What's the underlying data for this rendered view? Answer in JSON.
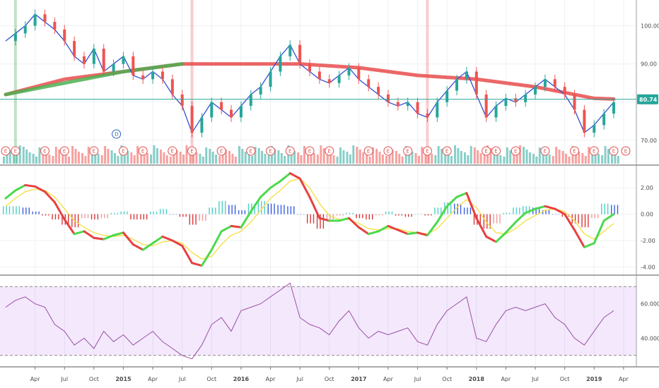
{
  "chart_data": [
    {
      "type": "line",
      "panel": "price",
      "y_ticks": [
        {
          "label": "100.00",
          "value": 100
        },
        {
          "label": "90.00",
          "value": 90
        },
        {
          "label": "80.00",
          "value": 80
        },
        {
          "label": "70.00",
          "value": 70
        }
      ],
      "ylim": [
        65,
        106
      ],
      "last_price": {
        "label": "80.74",
        "value": 80.74
      },
      "x_ticks": [
        "Apr",
        "Jul",
        "Oct",
        "2015",
        "Apr",
        "Jul",
        "Oct",
        "2016",
        "Apr",
        "Jul",
        "Oct",
        "2017",
        "Apr",
        "Jul",
        "Oct",
        "2018",
        "Apr",
        "Jul",
        "Oct",
        "2019",
        "Apr"
      ],
      "x_tick_months": [
        3,
        6,
        9,
        12,
        15,
        18,
        21,
        24,
        27,
        30,
        33,
        36,
        39,
        42,
        45,
        48,
        51,
        54,
        57,
        60,
        63
      ],
      "price_series": {
        "name": "",
        "months": [
          0,
          1,
          2,
          3,
          4,
          5,
          6,
          7,
          8,
          9,
          10,
          11,
          12,
          13,
          14,
          15,
          16,
          17,
          18,
          19,
          20,
          21,
          22,
          23,
          24,
          25,
          26,
          27,
          28,
          29,
          30,
          31,
          32,
          33,
          34,
          35,
          36,
          37,
          38,
          39,
          40,
          41,
          42,
          43,
          44,
          45,
          46,
          47,
          48,
          49,
          50,
          51,
          52,
          53,
          54,
          55,
          56,
          57,
          58,
          59,
          60,
          61,
          62
        ],
        "values": [
          96,
          98,
          100,
          103,
          101,
          99,
          96,
          92,
          90,
          94,
          88,
          90,
          92,
          87,
          86,
          88,
          86,
          82,
          79,
          72,
          76,
          80,
          78,
          76,
          79,
          82,
          84,
          88,
          92,
          95,
          90,
          88,
          86,
          85,
          87,
          89,
          86,
          84,
          82,
          80,
          79,
          80,
          77,
          76,
          80,
          83,
          86,
          88,
          82,
          76,
          79,
          81,
          80,
          82,
          84,
          86,
          84,
          82,
          78,
          72,
          74,
          77,
          80
        ]
      },
      "ma_series": [
        {
          "name": "",
          "color": "#e84c4c",
          "months": [
            0,
            6,
            12,
            18,
            24,
            30,
            36,
            42,
            48,
            54,
            60,
            62
          ],
          "values": [
            82,
            86,
            88,
            90,
            90,
            90,
            89,
            87,
            86,
            84,
            81,
            80.8
          ]
        },
        {
          "name": "",
          "color": "#4caf50",
          "months": [
            0,
            6,
            12,
            18
          ],
          "values": [
            82,
            85,
            88,
            90
          ]
        }
      ],
      "highlight_months": [
        1,
        19,
        43
      ],
      "earnings_months": [
        0,
        1,
        4,
        6,
        9,
        12,
        14,
        17,
        19,
        22,
        25,
        27,
        29,
        31,
        33,
        37,
        39,
        41,
        43,
        45,
        49,
        50,
        52,
        55,
        58,
        60,
        62
      ],
      "dividend_month": 11
    },
    {
      "type": "bar",
      "panel": "macd",
      "y_ticks": [
        {
          "label": "2.00",
          "value": 2
        },
        {
          "label": "0.00",
          "value": 0
        },
        {
          "label": "-2.00",
          "value": -2
        },
        {
          "label": "-4.00",
          "value": -4
        }
      ],
      "ylim": [
        -4.3,
        3.4
      ],
      "months": [
        0,
        1,
        2,
        3,
        4,
        5,
        6,
        7,
        8,
        9,
        10,
        11,
        12,
        13,
        14,
        15,
        16,
        17,
        18,
        19,
        20,
        21,
        22,
        23,
        24,
        25,
        26,
        27,
        28,
        29,
        30,
        31,
        32,
        33,
        34,
        35,
        36,
        37,
        38,
        39,
        40,
        41,
        42,
        43,
        44,
        45,
        46,
        47,
        48,
        49,
        50,
        51,
        52,
        53,
        54,
        55,
        56,
        57,
        58,
        59,
        60,
        61,
        62
      ],
      "macd": [
        1.2,
        1.8,
        2.2,
        2.1,
        1.7,
        0.9,
        -0.4,
        -1.5,
        -1.3,
        -1.8,
        -1.9,
        -1.6,
        -1.4,
        -2.3,
        -2.7,
        -2.2,
        -1.7,
        -2.0,
        -2.4,
        -3.7,
        -3.9,
        -2.7,
        -1.3,
        -0.9,
        -1.0,
        0.2,
        1.3,
        2.0,
        2.5,
        3.1,
        2.7,
        1.3,
        -0.3,
        -0.5,
        -0.5,
        -0.3,
        -1.0,
        -1.5,
        -1.3,
        -0.9,
        -1.2,
        -1.5,
        -1.4,
        -1.6,
        -0.6,
        0.6,
        1.3,
        1.6,
        -0.3,
        -1.7,
        -2.1,
        -1.4,
        -0.6,
        0.1,
        0.4,
        0.6,
        0.4,
        0.0,
        -1.2,
        -2.5,
        -2.2,
        -0.5,
        0.0
      ],
      "signal": [
        0.6,
        1.2,
        1.7,
        1.9,
        1.8,
        1.3,
        0.4,
        -0.5,
        -1.0,
        -1.4,
        -1.6,
        -1.7,
        -1.6,
        -1.9,
        -2.3,
        -2.4,
        -2.1,
        -2.0,
        -2.2,
        -2.9,
        -3.4,
        -3.2,
        -2.3,
        -1.6,
        -1.3,
        -0.6,
        0.3,
        1.2,
        1.8,
        2.5,
        2.7,
        2.0,
        0.8,
        -0.1,
        -0.4,
        -0.4,
        -0.7,
        -1.1,
        -1.2,
        -1.1,
        -1.1,
        -1.3,
        -1.4,
        -1.5,
        -1.1,
        -0.3,
        0.5,
        1.1,
        0.5,
        -0.6,
        -1.4,
        -1.5,
        -1.1,
        -0.5,
        -0.1,
        0.3,
        0.4,
        0.2,
        -0.5,
        -1.5,
        -1.9,
        -1.3,
        -0.7
      ],
      "histogram": [
        0.6,
        0.6,
        0.5,
        0.2,
        -0.1,
        -0.4,
        -0.8,
        -1.0,
        -0.3,
        -0.4,
        -0.3,
        0.1,
        0.2,
        -0.4,
        -0.4,
        0.2,
        0.4,
        0.0,
        -0.2,
        -0.8,
        -0.5,
        0.5,
        1.0,
        0.7,
        0.3,
        0.8,
        1.0,
        0.8,
        0.7,
        0.6,
        0.0,
        -0.7,
        -1.1,
        -0.4,
        -0.1,
        0.1,
        -0.3,
        -0.4,
        -0.1,
        0.2,
        -0.1,
        -0.2,
        0.0,
        -0.1,
        0.5,
        0.9,
        0.8,
        0.5,
        -0.8,
        -1.1,
        -0.7,
        0.1,
        0.5,
        0.6,
        0.5,
        0.3,
        0.0,
        -0.2,
        -0.7,
        -1.0,
        -0.3,
        0.8,
        0.7
      ]
    },
    {
      "type": "line",
      "panel": "rsi",
      "y_ticks": [
        {
          "label": "60.0000",
          "value": 60
        },
        {
          "label": "40.0000",
          "value": 40
        }
      ],
      "ylim": [
        25,
        75
      ],
      "band": [
        30,
        70
      ],
      "months": [
        0,
        1,
        2,
        3,
        4,
        5,
        6,
        7,
        8,
        9,
        10,
        11,
        12,
        13,
        14,
        15,
        16,
        17,
        18,
        19,
        20,
        21,
        22,
        23,
        24,
        25,
        26,
        27,
        28,
        29,
        30,
        31,
        32,
        33,
        34,
        35,
        36,
        37,
        38,
        39,
        40,
        41,
        42,
        43,
        44,
        45,
        46,
        47,
        48,
        49,
        50,
        51,
        52,
        53,
        54,
        55,
        56,
        57,
        58,
        59,
        60,
        61,
        62
      ],
      "values": [
        58,
        62,
        64,
        60,
        58,
        48,
        44,
        36,
        40,
        34,
        44,
        38,
        42,
        36,
        40,
        44,
        38,
        34,
        30,
        28,
        36,
        48,
        52,
        44,
        56,
        58,
        60,
        64,
        68,
        72,
        52,
        48,
        46,
        42,
        50,
        56,
        46,
        40,
        44,
        42,
        44,
        46,
        38,
        36,
        48,
        56,
        60,
        64,
        40,
        38,
        48,
        56,
        58,
        56,
        58,
        60,
        52,
        48,
        40,
        36,
        44,
        52,
        56
      ]
    }
  ]
}
